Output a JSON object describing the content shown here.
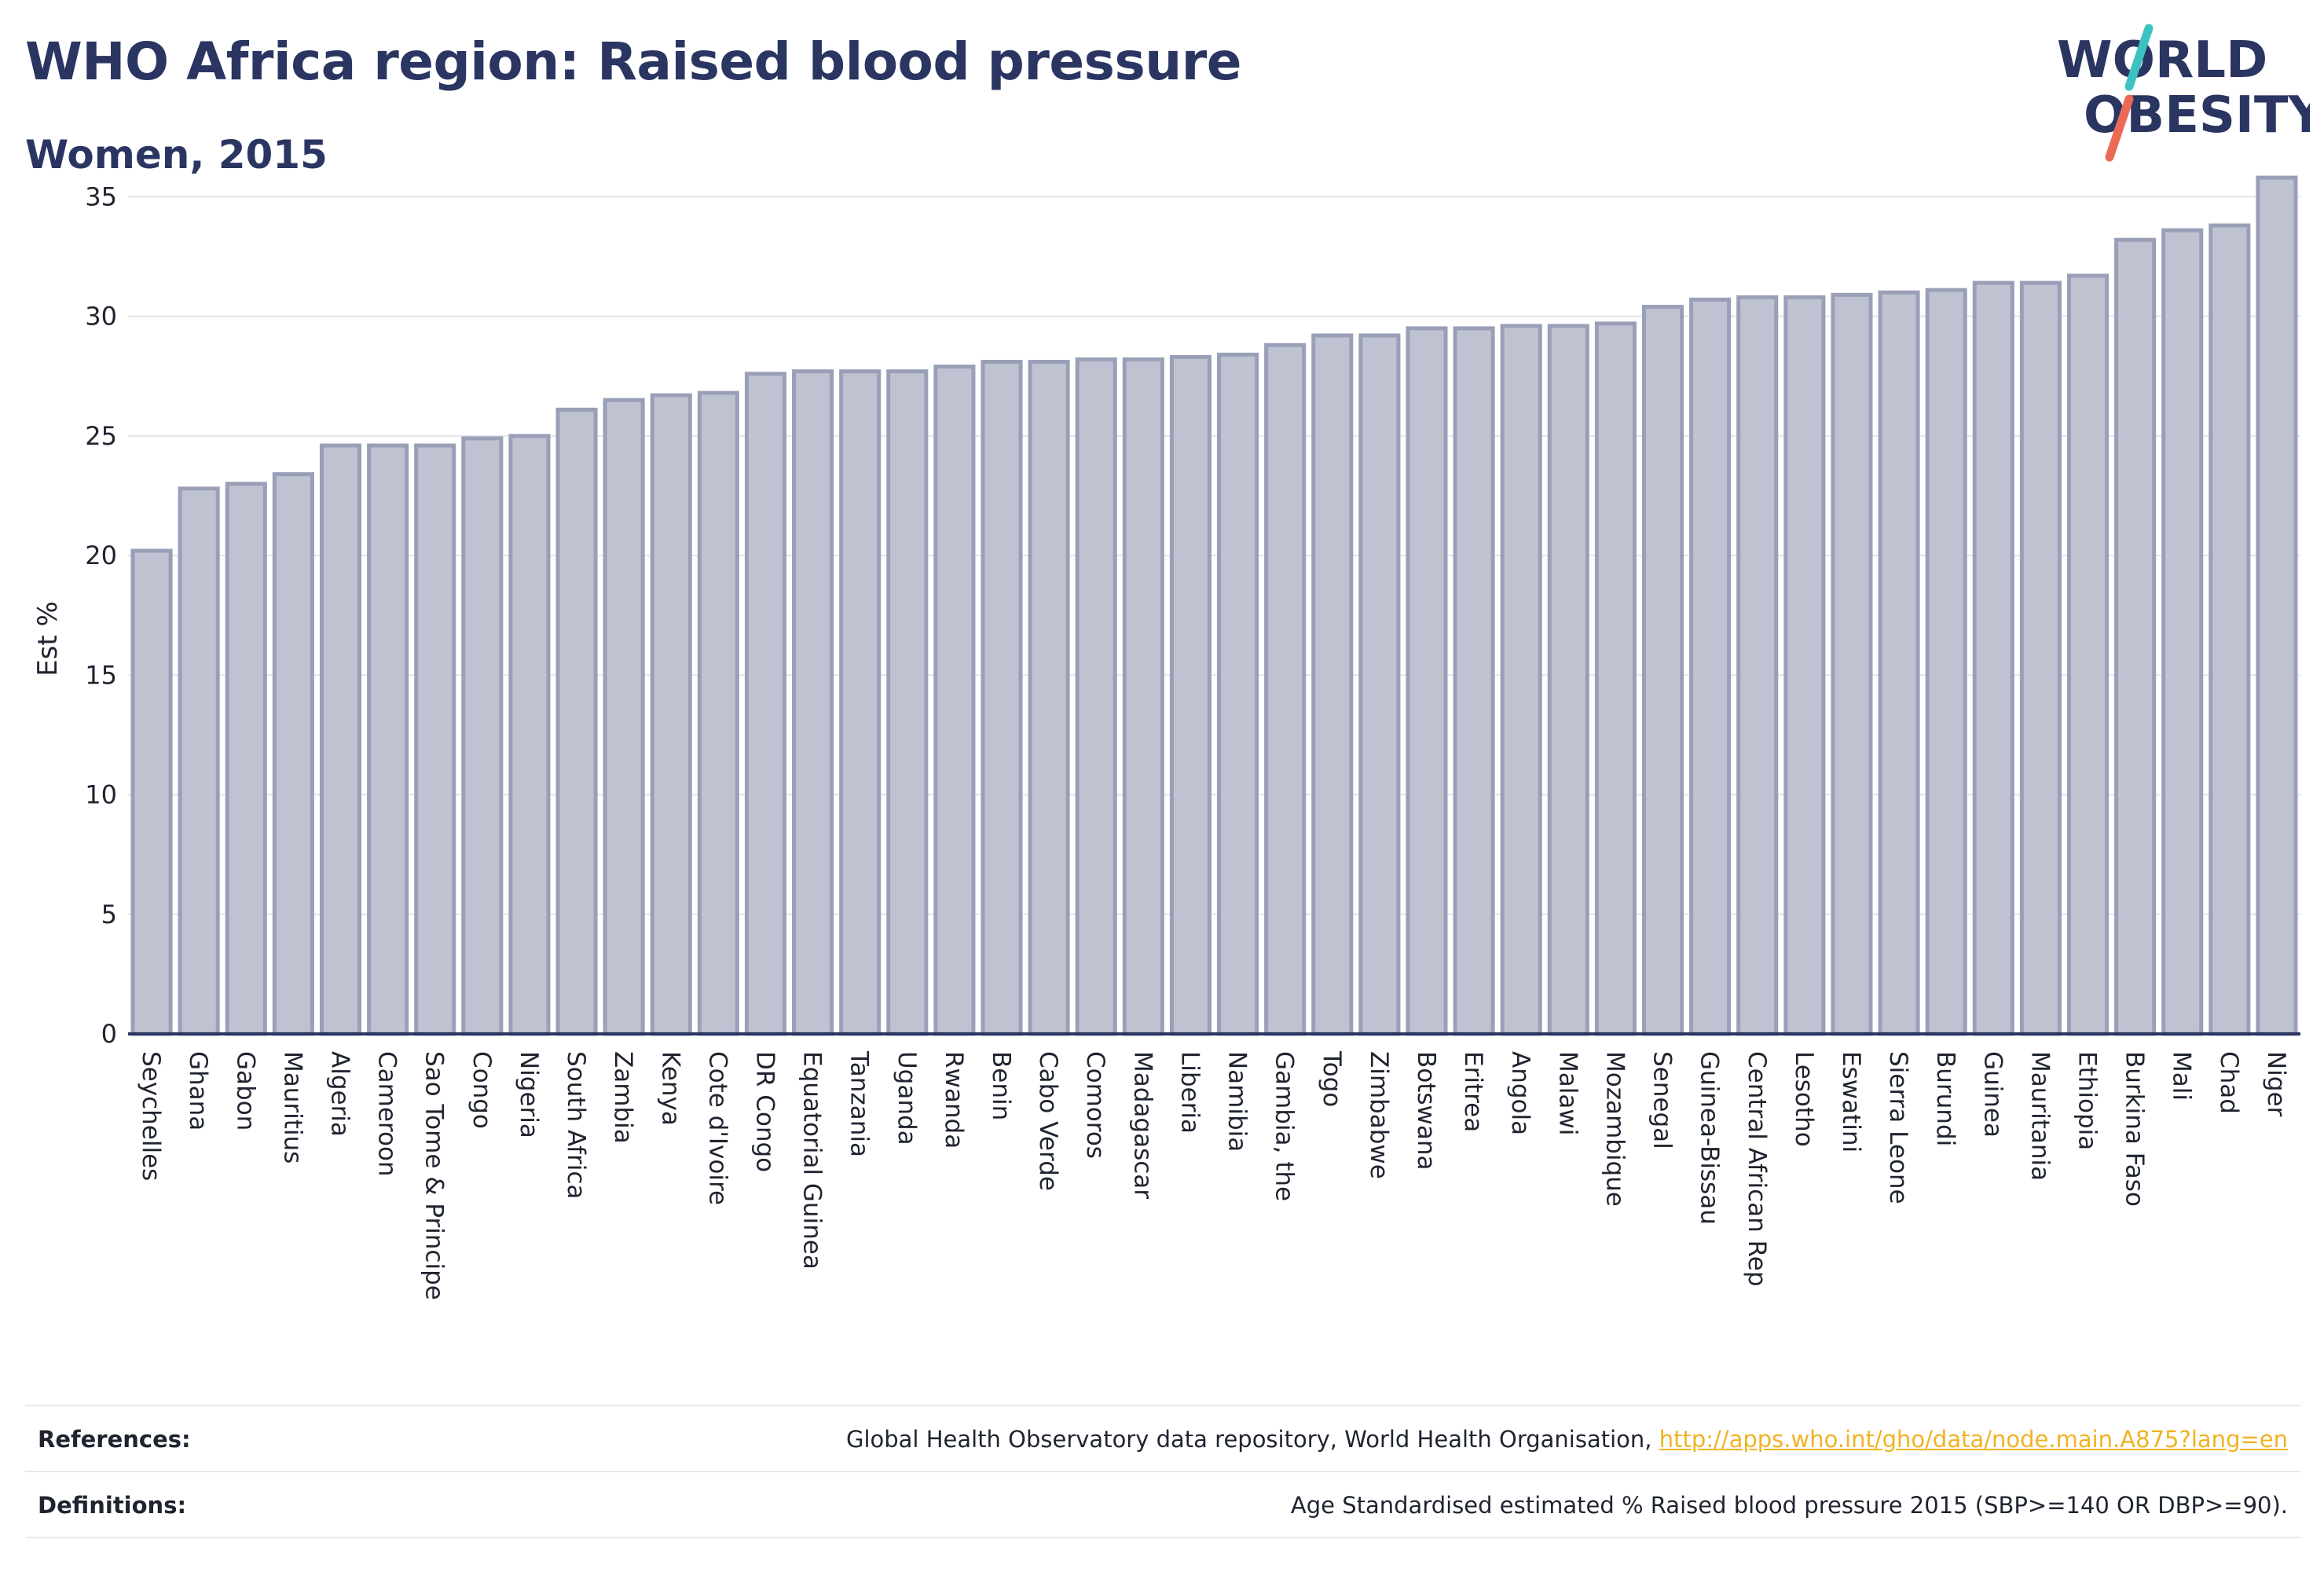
{
  "header": {
    "title": "WHO Africa region: Raised blood pressure",
    "subtitle": "Women, 2015",
    "logo_line1": "WORLD",
    "logo_line2": "OBESITY"
  },
  "colors": {
    "title": "#2b3561",
    "bar_fill": "#bfc2d1",
    "bar_stroke": "#9a9fb8",
    "axis": "#2b3561",
    "grid": "#e3e5ea",
    "logo_teal": "#3cc2c0",
    "logo_coral": "#ec6a55",
    "link": "#f0b323"
  },
  "chart_data": {
    "type": "bar",
    "title": "WHO Africa region: Raised blood pressure",
    "subtitle": "Women, 2015",
    "xlabel": "",
    "ylabel": "Est %",
    "ylim": [
      0,
      36
    ],
    "yticks": [
      0,
      5,
      10,
      15,
      20,
      25,
      30,
      35
    ],
    "grid": true,
    "legend": "none",
    "categories": [
      "Seychelles",
      "Ghana",
      "Gabon",
      "Mauritius",
      "Algeria",
      "Cameroon",
      "Sao Tome & Principe",
      "Congo",
      "Nigeria",
      "South Africa",
      "Zambia",
      "Kenya",
      "Cote d'Ivoire",
      "DR Congo",
      "Equatorial Guinea",
      "Tanzania",
      "Uganda",
      "Rwanda",
      "Benin",
      "Cabo Verde",
      "Comoros",
      "Madagascar",
      "Liberia",
      "Namibia",
      "Gambia, the",
      "Togo",
      "Zimbabwe",
      "Botswana",
      "Eritrea",
      "Angola",
      "Malawi",
      "Mozambique",
      "Senegal",
      "Guinea-Bissau",
      "Central African Rep",
      "Lesotho",
      "Eswatini",
      "Sierra Leone",
      "Burundi",
      "Guinea",
      "Mauritania",
      "Ethiopia",
      "Burkina Faso",
      "Mali",
      "Chad",
      "Niger"
    ],
    "values": [
      20.2,
      22.8,
      23.0,
      23.4,
      24.6,
      24.6,
      24.6,
      24.9,
      25.0,
      26.1,
      26.5,
      26.7,
      26.8,
      27.6,
      27.7,
      27.7,
      27.7,
      27.9,
      28.1,
      28.1,
      28.2,
      28.2,
      28.3,
      28.4,
      28.8,
      29.2,
      29.2,
      29.5,
      29.5,
      29.6,
      29.6,
      29.7,
      30.4,
      30.7,
      30.8,
      30.8,
      30.9,
      31.0,
      31.1,
      31.4,
      31.4,
      31.7,
      33.2,
      33.6,
      33.8,
      35.8
    ]
  },
  "footer": {
    "references_label": "References:",
    "references_text": "Global Health Observatory data repository, World Health Organisation, ",
    "references_link": "http://apps.who.int/gho/data/node.main.A875?lang=en",
    "definitions_label": "Definitions:",
    "definitions_text": "Age Standardised estimated % Raised blood pressure 2015 (SBP>=140 OR DBP>=90)."
  }
}
